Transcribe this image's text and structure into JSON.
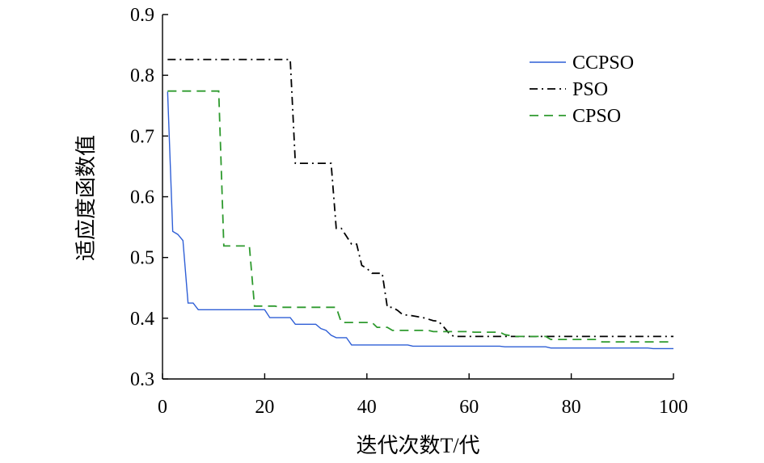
{
  "chart_data": {
    "type": "line",
    "title": "",
    "xlabel": "迭代次数T/代",
    "ylabel": "适应度函数值",
    "xlim": [
      0,
      100
    ],
    "ylim": [
      0.3,
      0.9
    ],
    "xticks": [
      "0",
      "20",
      "40",
      "60",
      "80",
      "100"
    ],
    "yticks": [
      "0.3",
      "0.4",
      "0.5",
      "0.6",
      "0.7",
      "0.8",
      "0.9"
    ],
    "grid": false,
    "legend_position": "top-right",
    "series": [
      {
        "name": "CCPSO",
        "color": "#2f5fd6",
        "dash": "solid",
        "points": [
          [
            1,
            0.773
          ],
          [
            2,
            0.543
          ],
          [
            3,
            0.538
          ],
          [
            4,
            0.528
          ],
          [
            5,
            0.425
          ],
          [
            6,
            0.425
          ],
          [
            7,
            0.414
          ],
          [
            20,
            0.414
          ],
          [
            21,
            0.401
          ],
          [
            25,
            0.401
          ],
          [
            26,
            0.39
          ],
          [
            30,
            0.39
          ],
          [
            31,
            0.383
          ],
          [
            32,
            0.38
          ],
          [
            33,
            0.372
          ],
          [
            34,
            0.368
          ],
          [
            36,
            0.368
          ],
          [
            37,
            0.356
          ],
          [
            48,
            0.356
          ],
          [
            49,
            0.354
          ],
          [
            66,
            0.354
          ],
          [
            67,
            0.353
          ],
          [
            75,
            0.353
          ],
          [
            76,
            0.351
          ],
          [
            95,
            0.351
          ],
          [
            96,
            0.35
          ],
          [
            100,
            0.35
          ]
        ]
      },
      {
        "name": "PSO",
        "color": "#000000",
        "dash": "dashdot",
        "points": [
          [
            1,
            0.826
          ],
          [
            25,
            0.826
          ],
          [
            26,
            0.655
          ],
          [
            33,
            0.655
          ],
          [
            34,
            0.548
          ],
          [
            35,
            0.548
          ],
          [
            36,
            0.535
          ],
          [
            37,
            0.522
          ],
          [
            38,
            0.522
          ],
          [
            39,
            0.487
          ],
          [
            40,
            0.482
          ],
          [
            41,
            0.474
          ],
          [
            43,
            0.474
          ],
          [
            44,
            0.418
          ],
          [
            45,
            0.418
          ],
          [
            46,
            0.413
          ],
          [
            47,
            0.406
          ],
          [
            49,
            0.404
          ],
          [
            51,
            0.401
          ],
          [
            53,
            0.396
          ],
          [
            54,
            0.395
          ],
          [
            55,
            0.386
          ],
          [
            56,
            0.376
          ],
          [
            57,
            0.37
          ],
          [
            100,
            0.37
          ]
        ]
      },
      {
        "name": "CPSO",
        "color": "#2e9a2e",
        "dash": "dashed",
        "points": [
          [
            1,
            0.774
          ],
          [
            11,
            0.774
          ],
          [
            12,
            0.519
          ],
          [
            17,
            0.519
          ],
          [
            18,
            0.42
          ],
          [
            22,
            0.42
          ],
          [
            23,
            0.418
          ],
          [
            34,
            0.418
          ],
          [
            35,
            0.393
          ],
          [
            41,
            0.393
          ],
          [
            42,
            0.385
          ],
          [
            44,
            0.385
          ],
          [
            45,
            0.38
          ],
          [
            52,
            0.38
          ],
          [
            53,
            0.378
          ],
          [
            60,
            0.378
          ],
          [
            61,
            0.377
          ],
          [
            66,
            0.377
          ],
          [
            67,
            0.373
          ],
          [
            69,
            0.37
          ],
          [
            75,
            0.37
          ],
          [
            76,
            0.365
          ],
          [
            85,
            0.365
          ],
          [
            86,
            0.361
          ],
          [
            100,
            0.361
          ]
        ]
      }
    ]
  }
}
